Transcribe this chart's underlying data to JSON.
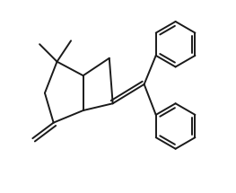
{
  "bg_color": "#ffffff",
  "line_color": "#1a1a1a",
  "lw": 1.4,
  "dbo": 0.012,
  "fig_width": 2.63,
  "fig_height": 2.15,
  "dpi": 100,
  "xlim": [
    -0.05,
    1.15
  ],
  "ylim": [
    -0.05,
    1.05
  ],
  "ph_r": 0.13,
  "ph_dbo": 0.02
}
